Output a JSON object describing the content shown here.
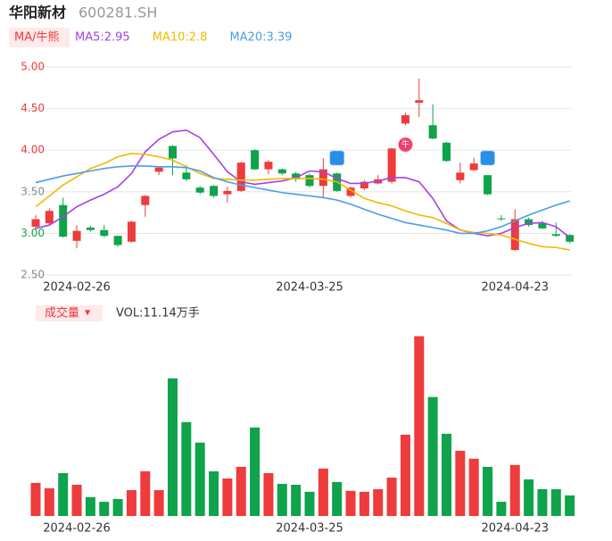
{
  "header": {
    "title": "华阳新材",
    "code": "600281.SH",
    "indicator": "MA/牛熊"
  },
  "chart_data": {
    "type": "candlestick",
    "categories": [
      null,
      null,
      null,
      "2024-02-26",
      null,
      null,
      null,
      null,
      null,
      null,
      null,
      null,
      null,
      null,
      null,
      null,
      null,
      null,
      null,
      null,
      "2024-03-25",
      null,
      null,
      null,
      null,
      null,
      null,
      null,
      null,
      null,
      null,
      null,
      null,
      null,
      null,
      "2024-04-23",
      null,
      null,
      null,
      null
    ],
    "open": [
      3.08,
      3.12,
      3.34,
      2.91,
      3.07,
      3.04,
      2.97,
      2.9,
      3.34,
      3.74,
      4.05,
      3.73,
      3.55,
      3.57,
      3.47,
      3.51,
      4.0,
      3.77,
      3.77,
      3.72,
      3.7,
      3.57,
      3.72,
      3.45,
      3.54,
      3.6,
      3.62,
      4.32,
      4.57,
      4.3,
      4.09,
      3.64,
      3.76,
      3.7,
      3.18,
      2.8,
      3.17,
      3.12,
      2.99,
      2.98
    ],
    "high": [
      3.22,
      3.3,
      3.43,
      3.1,
      3.09,
      3.1,
      2.97,
      3.15,
      3.46,
      3.8,
      4.06,
      3.82,
      3.57,
      3.58,
      3.56,
      3.86,
      4.01,
      3.88,
      3.78,
      3.74,
      3.72,
      3.9,
      3.73,
      3.56,
      3.64,
      3.7,
      4.03,
      4.45,
      4.86,
      4.55,
      4.1,
      3.85,
      3.91,
      3.7,
      3.22,
      3.29,
      3.19,
      3.15,
      3.13,
      2.99
    ],
    "low": [
      3.05,
      3.1,
      2.95,
      2.82,
      3.02,
      2.95,
      2.84,
      2.89,
      3.2,
      3.7,
      3.7,
      3.63,
      3.47,
      3.43,
      3.37,
      3.5,
      3.76,
      3.71,
      3.7,
      3.62,
      3.55,
      3.43,
      3.5,
      3.43,
      3.52,
      3.59,
      3.6,
      4.3,
      4.4,
      4.13,
      3.86,
      3.6,
      3.75,
      3.46,
      3.15,
      2.79,
      3.08,
      3.05,
      2.96,
      2.88
    ],
    "close": [
      3.17,
      3.27,
      2.96,
      3.03,
      3.04,
      2.97,
      2.86,
      3.14,
      3.45,
      3.79,
      3.9,
      3.65,
      3.49,
      3.45,
      3.51,
      3.85,
      3.77,
      3.86,
      3.72,
      3.65,
      3.57,
      3.77,
      3.51,
      3.55,
      3.62,
      3.65,
      4.02,
      4.42,
      4.6,
      4.14,
      3.87,
      3.73,
      3.84,
      3.47,
      3.17,
      3.17,
      3.1,
      3.06,
      2.97,
      2.9
    ],
    "volume": [
      17.9,
      15.0,
      23.2,
      16.9,
      10.2,
      7.7,
      9.2,
      14.0,
      24.2,
      14.0,
      74.5,
      50.8,
      39.7,
      24.2,
      20.3,
      26.6,
      47.9,
      23.2,
      17.4,
      16.9,
      13.1,
      25.7,
      18.4,
      13.6,
      13.1,
      14.5,
      20.8,
      44.0,
      97.3,
      64.4,
      44.5,
      35.3,
      31.0,
      26.6,
      7.7,
      27.6,
      19.8,
      14.5,
      14.5,
      11.14
    ],
    "up_color": "#ee3b3b",
    "down_color": "#0fa34b",
    "series": [
      {
        "name": "MA5:2.95",
        "color": "#a442e6",
        "values": [
          3.06,
          3.1,
          3.2,
          3.32,
          3.4,
          3.47,
          3.56,
          3.72,
          3.98,
          4.13,
          4.22,
          4.24,
          4.15,
          3.95,
          3.74,
          3.62,
          3.59,
          3.61,
          3.63,
          3.67,
          3.75,
          3.74,
          3.66,
          3.6,
          3.6,
          3.63,
          3.67,
          3.67,
          3.62,
          3.42,
          3.15,
          3.04,
          3.0,
          2.97,
          3.0,
          3.07,
          3.12,
          3.13,
          3.08,
          2.95
        ]
      },
      {
        "name": "MA10:2.8",
        "color": "#f5b800",
        "values": [
          3.32,
          3.45,
          3.58,
          3.68,
          3.78,
          3.84,
          3.92,
          3.96,
          3.95,
          3.92,
          3.88,
          3.8,
          3.72,
          3.66,
          3.65,
          3.64,
          3.64,
          3.65,
          3.66,
          3.66,
          3.66,
          3.65,
          3.62,
          3.52,
          3.42,
          3.37,
          3.33,
          3.27,
          3.22,
          3.19,
          3.12,
          3.04,
          3.01,
          3.0,
          2.98,
          2.93,
          2.88,
          2.84,
          2.83,
          2.8
        ]
      },
      {
        "name": "MA20:3.39",
        "color": "#4a9ee8",
        "values": [
          3.61,
          3.65,
          3.69,
          3.72,
          3.75,
          3.78,
          3.8,
          3.81,
          3.81,
          3.8,
          3.8,
          3.79,
          3.75,
          3.67,
          3.62,
          3.58,
          3.55,
          3.52,
          3.49,
          3.47,
          3.45,
          3.43,
          3.4,
          3.35,
          3.29,
          3.23,
          3.18,
          3.13,
          3.1,
          3.07,
          3.04,
          3.0,
          3.0,
          3.03,
          3.08,
          3.15,
          3.22,
          3.28,
          3.34,
          3.39
        ]
      }
    ],
    "ylim": [
      2.5,
      5.0
    ],
    "yticks": [
      {
        "value": 5.0,
        "label": "5.00"
      },
      {
        "value": 4.5,
        "label": "4.50"
      },
      {
        "value": 4.0,
        "label": "4.00"
      },
      {
        "value": 3.5,
        "label": "3.50"
      },
      {
        "value": 3.0,
        "label": "3.00"
      },
      {
        "value": 2.5,
        "label": "2.50"
      }
    ],
    "ytick_colors": [
      "#ee3b3b",
      "#ee3b3b",
      "#ee3b3b",
      "#888888",
      "#0fa34b",
      "#888888"
    ],
    "grid": true,
    "annotation": "牛",
    "volume_title": "成交量",
    "volume_dropdown": "▼",
    "volume_label": "VOL:11.14万手",
    "vol_ylim": [
      0,
      100
    ]
  }
}
